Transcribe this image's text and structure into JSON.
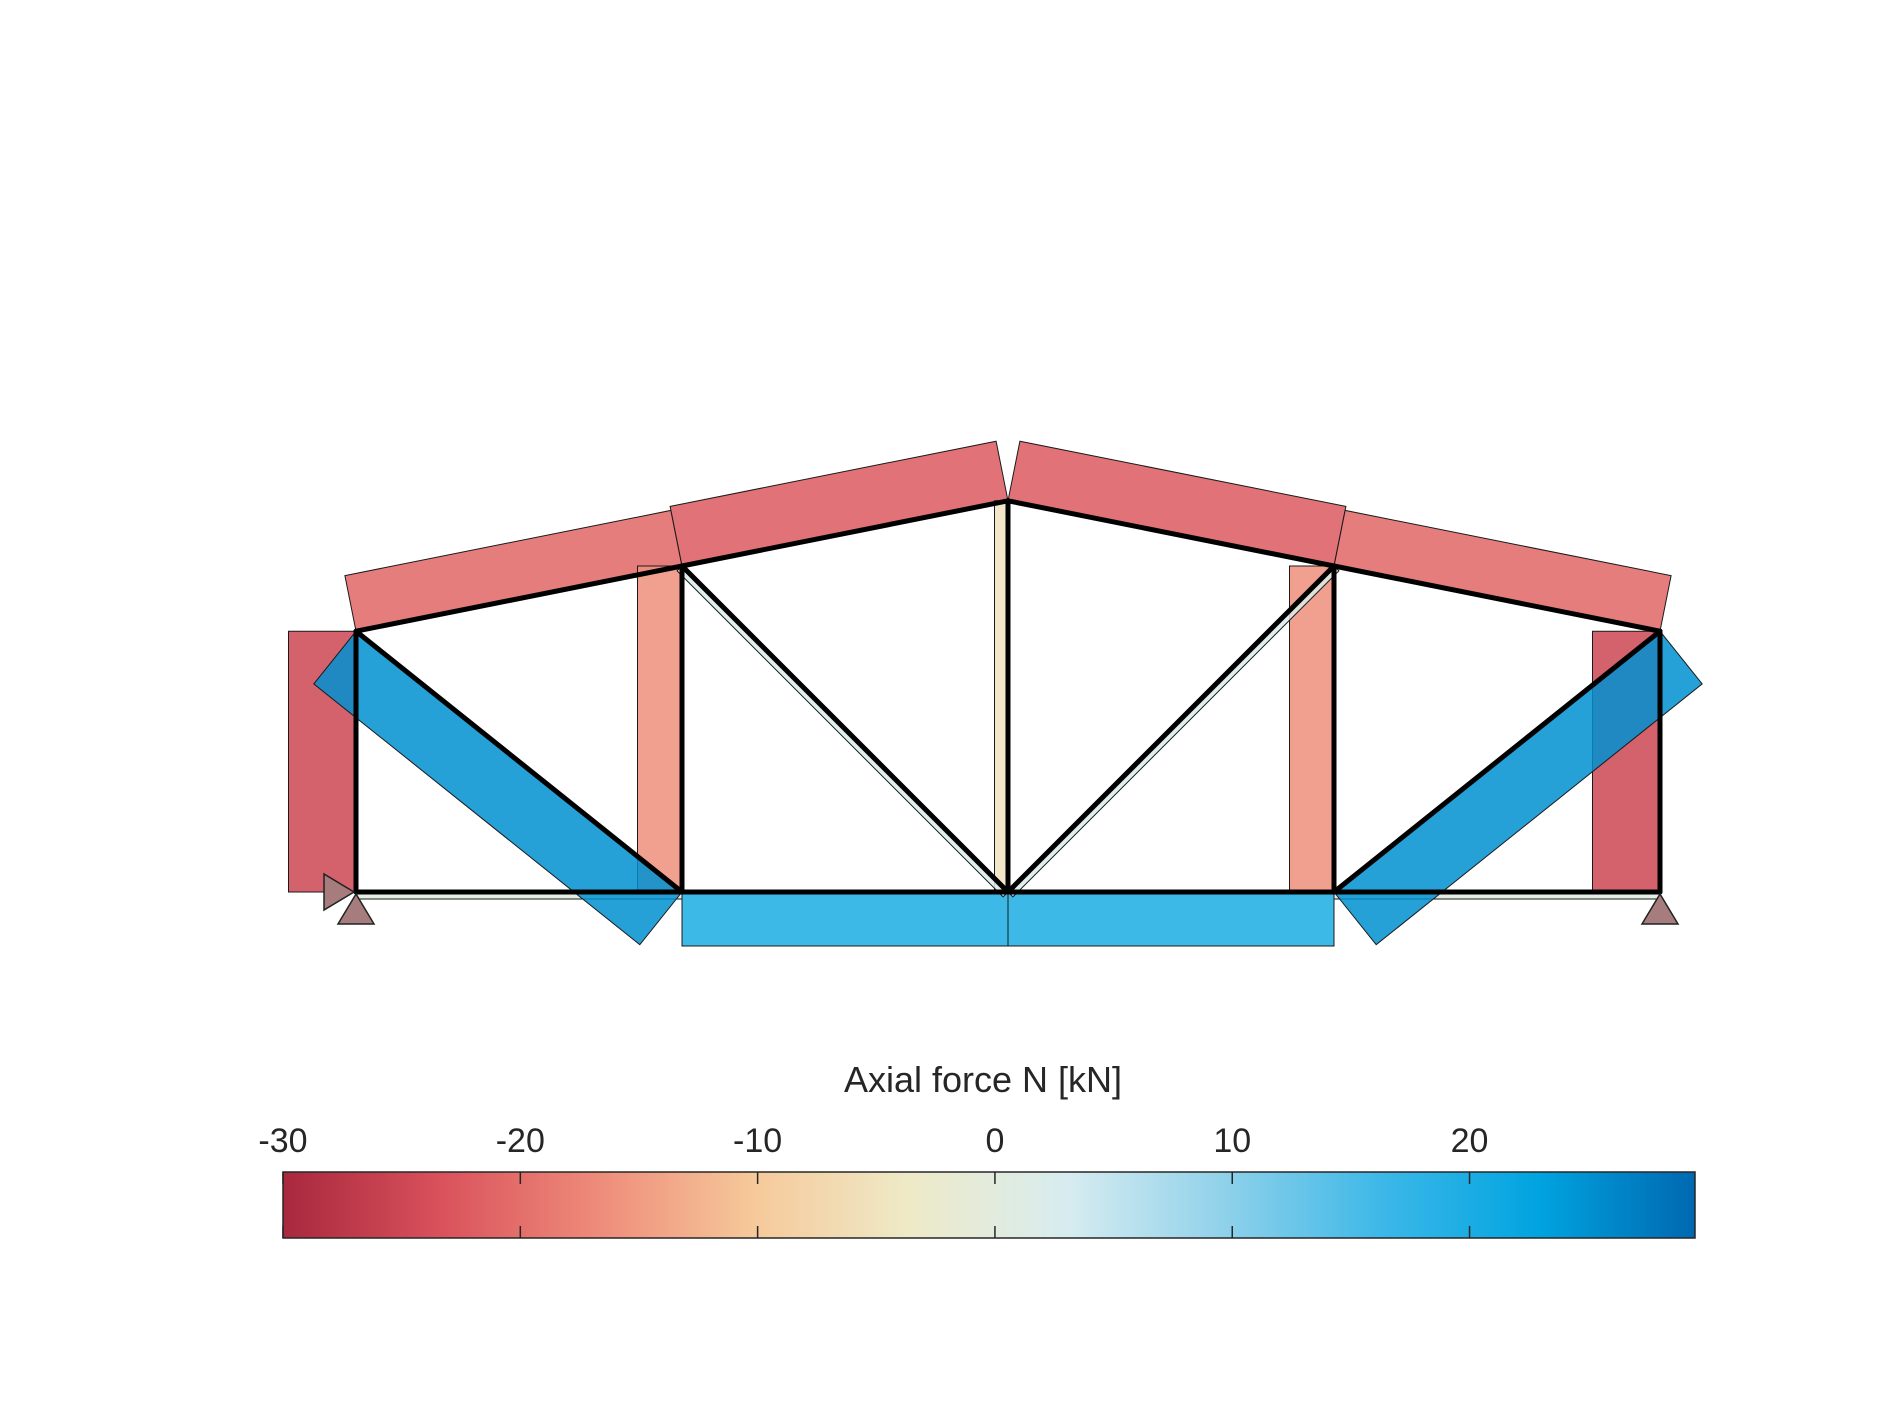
{
  "colorbar": {
    "title": "Axial force N [kN]",
    "min": -30,
    "max": 29.5,
    "ticks": [
      {
        "value": -30,
        "label": "-30"
      },
      {
        "value": -20,
        "label": "-20"
      },
      {
        "value": -10,
        "label": "-10"
      },
      {
        "value": 0,
        "label": "0"
      },
      {
        "value": 10,
        "label": "10"
      },
      {
        "value": 20,
        "label": "20"
      }
    ],
    "colormap": [
      "#a8283e",
      "#d9515b",
      "#ee8b7a",
      "#f6c99a",
      "#eeeac8",
      "#d7ecf0",
      "#8fd1ea",
      "#3db8e8",
      "#00a4e0",
      "#0068b0"
    ]
  },
  "truss": {
    "nodes": [
      {
        "id": 1,
        "x": 0,
        "y": 0
      },
      {
        "id": 2,
        "x": 4,
        "y": 0
      },
      {
        "id": 3,
        "x": 8,
        "y": 0
      },
      {
        "id": 4,
        "x": 12,
        "y": 0
      },
      {
        "id": 5,
        "x": 16,
        "y": 0
      },
      {
        "id": 6,
        "x": 0,
        "y": 3.2
      },
      {
        "id": 7,
        "x": 4,
        "y": 4
      },
      {
        "id": 8,
        "x": 8,
        "y": 4.8
      },
      {
        "id": 9,
        "x": 12,
        "y": 4
      },
      {
        "id": 10,
        "x": 16,
        "y": 3.2
      }
    ],
    "members": [
      {
        "n1": 1,
        "n2": 2,
        "N": 0.5
      },
      {
        "n1": 2,
        "n2": 3,
        "N": 20
      },
      {
        "n1": 3,
        "n2": 4,
        "N": 20
      },
      {
        "n1": 4,
        "n2": 5,
        "N": 0.5
      },
      {
        "n1": 6,
        "n2": 7,
        "N": -21
      },
      {
        "n1": 7,
        "n2": 8,
        "N": -22.5
      },
      {
        "n1": 8,
        "n2": 9,
        "N": -22.5
      },
      {
        "n1": 9,
        "n2": 10,
        "N": -21
      },
      {
        "n1": 1,
        "n2": 6,
        "N": -25
      },
      {
        "n1": 2,
        "n2": 7,
        "N": -16.5
      },
      {
        "n1": 3,
        "n2": 8,
        "N": -5
      },
      {
        "n1": 4,
        "n2": 9,
        "N": -16.5
      },
      {
        "n1": 5,
        "n2": 10,
        "N": -25
      },
      {
        "n1": 6,
        "n2": 2,
        "N": 25
      },
      {
        "n1": 7,
        "n2": 3,
        "N": 2
      },
      {
        "n1": 3,
        "n2": 9,
        "N": 2
      },
      {
        "n1": 4,
        "n2": 10,
        "N": 25
      }
    ],
    "supports": [
      {
        "node": 1,
        "type": "pin"
      },
      {
        "node": 5,
        "type": "roller"
      }
    ],
    "load_markers": [
      {
        "node": 1,
        "direction": "horizontal"
      }
    ]
  }
}
